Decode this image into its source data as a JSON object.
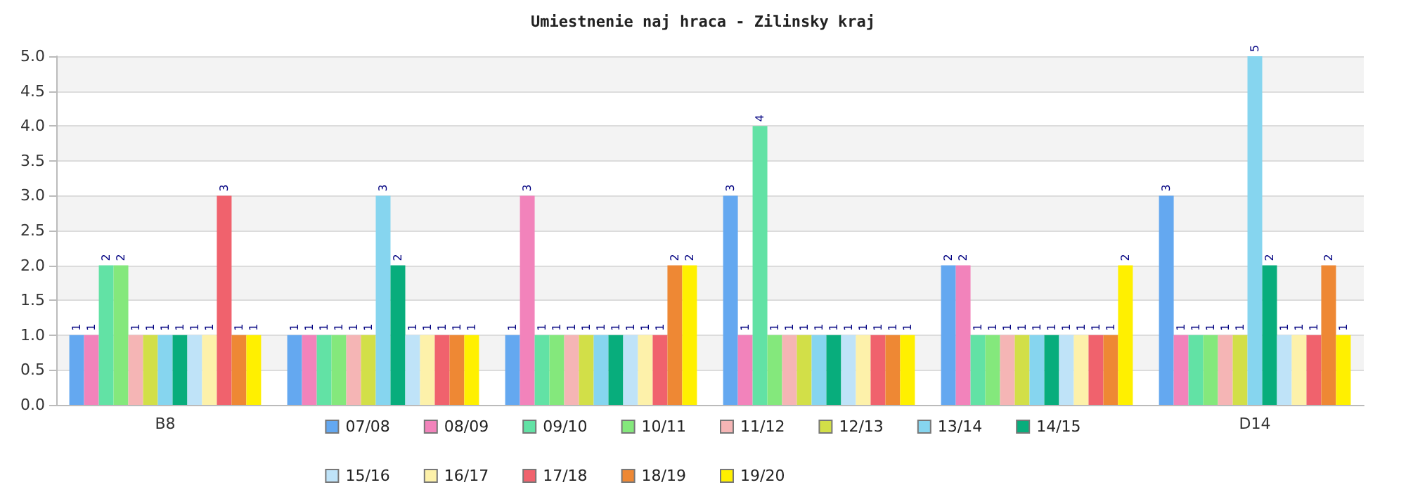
{
  "chart_data": {
    "type": "bar",
    "title": "Umiestnenie naj hraca - Zilinsky kraj",
    "categories": [
      "B8",
      null,
      null,
      null,
      null,
      "D14"
    ],
    "series": [
      {
        "name": "07/08",
        "color": "#64a8f0",
        "values": [
          1,
          1,
          1,
          3,
          2,
          3
        ]
      },
      {
        "name": "08/09",
        "color": "#f283bb",
        "values": [
          1,
          1,
          3,
          1,
          2,
          1
        ]
      },
      {
        "name": "09/10",
        "color": "#62e2a5",
        "values": [
          2,
          1,
          1,
          4,
          1,
          1
        ]
      },
      {
        "name": "10/11",
        "color": "#84e87c",
        "values": [
          2,
          1,
          1,
          1,
          1,
          1
        ]
      },
      {
        "name": "11/12",
        "color": "#f5b5b5",
        "values": [
          1,
          1,
          1,
          1,
          1,
          1
        ]
      },
      {
        "name": "12/13",
        "color": "#d2df48",
        "values": [
          1,
          1,
          1,
          1,
          1,
          1
        ]
      },
      {
        "name": "13/14",
        "color": "#86d5ef",
        "values": [
          1,
          3,
          1,
          1,
          1,
          5
        ]
      },
      {
        "name": "14/15",
        "color": "#08ad7c",
        "values": [
          1,
          2,
          1,
          1,
          1,
          2
        ]
      },
      {
        "name": "15/16",
        "color": "#bfe3f8",
        "values": [
          1,
          1,
          1,
          1,
          1,
          1
        ]
      },
      {
        "name": "16/17",
        "color": "#fdf1aa",
        "values": [
          1,
          1,
          1,
          1,
          1,
          1
        ]
      },
      {
        "name": "17/18",
        "color": "#f0626d",
        "values": [
          3,
          1,
          1,
          1,
          1,
          1
        ]
      },
      {
        "name": "18/19",
        "color": "#ee8834",
        "values": [
          1,
          1,
          2,
          1,
          1,
          2
        ]
      },
      {
        "name": "19/20",
        "color": "#fff000",
        "values": [
          1,
          1,
          2,
          1,
          2,
          1
        ]
      }
    ],
    "ylim": [
      0,
      5
    ],
    "yticks": [
      {
        "value": 0,
        "label": "0.0"
      },
      {
        "value": 0.5,
        "label": "0.5"
      },
      {
        "value": 1,
        "label": "1.0"
      },
      {
        "value": 1.5,
        "label": "1.5"
      },
      {
        "value": 2,
        "label": "2.0"
      },
      {
        "value": 2.5,
        "label": "2.5"
      },
      {
        "value": 3,
        "label": "3.0"
      },
      {
        "value": 3.5,
        "label": "3.5"
      },
      {
        "value": 4,
        "label": "4.0"
      },
      {
        "value": 4.5,
        "label": "4.5"
      },
      {
        "value": 5,
        "label": "5.0"
      }
    ],
    "grid": "y",
    "legend": "bottom",
    "data_labels": true
  }
}
